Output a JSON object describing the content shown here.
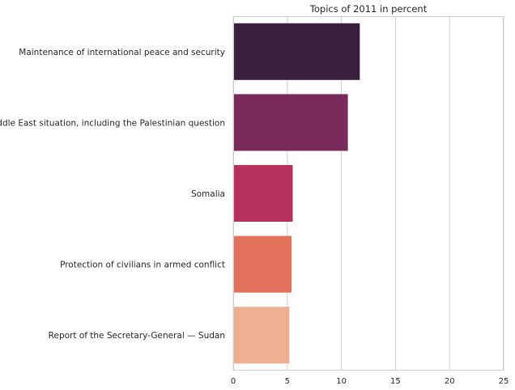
{
  "chart_data": {
    "type": "bar",
    "orientation": "horizontal",
    "title": "Topics of 2011 in percent",
    "xlabel": "",
    "ylabel": "",
    "xlim": [
      0,
      25
    ],
    "xticks": [
      0,
      5,
      10,
      15,
      20,
      25
    ],
    "grid": "vertical",
    "categories": [
      "Maintenance of international peace and security",
      "Middle East situation, including the Palestinian question",
      "Somalia",
      "Protection of civilians in armed conflict",
      "Report of the Secretary-General — Sudan"
    ],
    "values": [
      11.7,
      10.6,
      5.5,
      5.4,
      5.2
    ],
    "colors": [
      "#3b1f3f",
      "#7a2a5a",
      "#b5305a",
      "#e1715b",
      "#eeb093"
    ]
  }
}
